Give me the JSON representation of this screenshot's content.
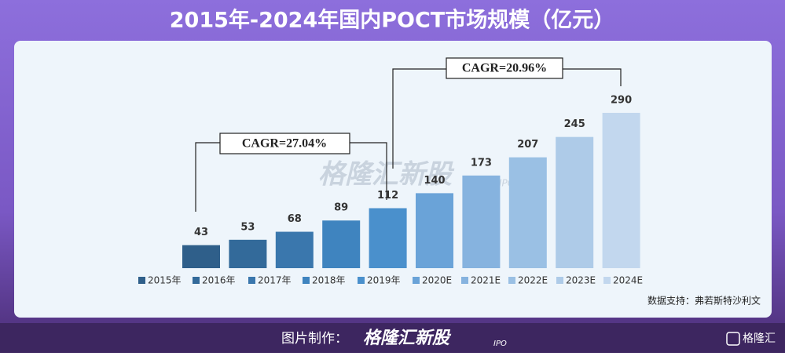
{
  "header": {
    "title": "2015年-2024年国内POCT市场规模（亿元）"
  },
  "chart_data": {
    "type": "bar",
    "categories": [
      "2015年",
      "2016年",
      "2017年",
      "2018年",
      "2019年",
      "2020E",
      "2021E",
      "2022E",
      "2023E",
      "2024E"
    ],
    "values": [
      43,
      53,
      68,
      89,
      112,
      140,
      173,
      207,
      245,
      290
    ],
    "colors": [
      "#2f5f8a",
      "#336a9a",
      "#3a77ad",
      "#3f84bf",
      "#4a90cc",
      "#6aa3d8",
      "#86b3df",
      "#9ac0e4",
      "#aecbe8",
      "#c2d7ee"
    ],
    "annotations": [
      "CAGR=27.04%",
      "CAGR=20.96%"
    ],
    "source": "数据支持：弗若斯特沙利文"
  },
  "watermark": {
    "main": "格隆汇新股",
    "sub": "IPO"
  },
  "footer": {
    "label": "图片制作：",
    "brand": "格隆汇新股",
    "brand_sub": "IPO",
    "logo": "格隆汇"
  }
}
